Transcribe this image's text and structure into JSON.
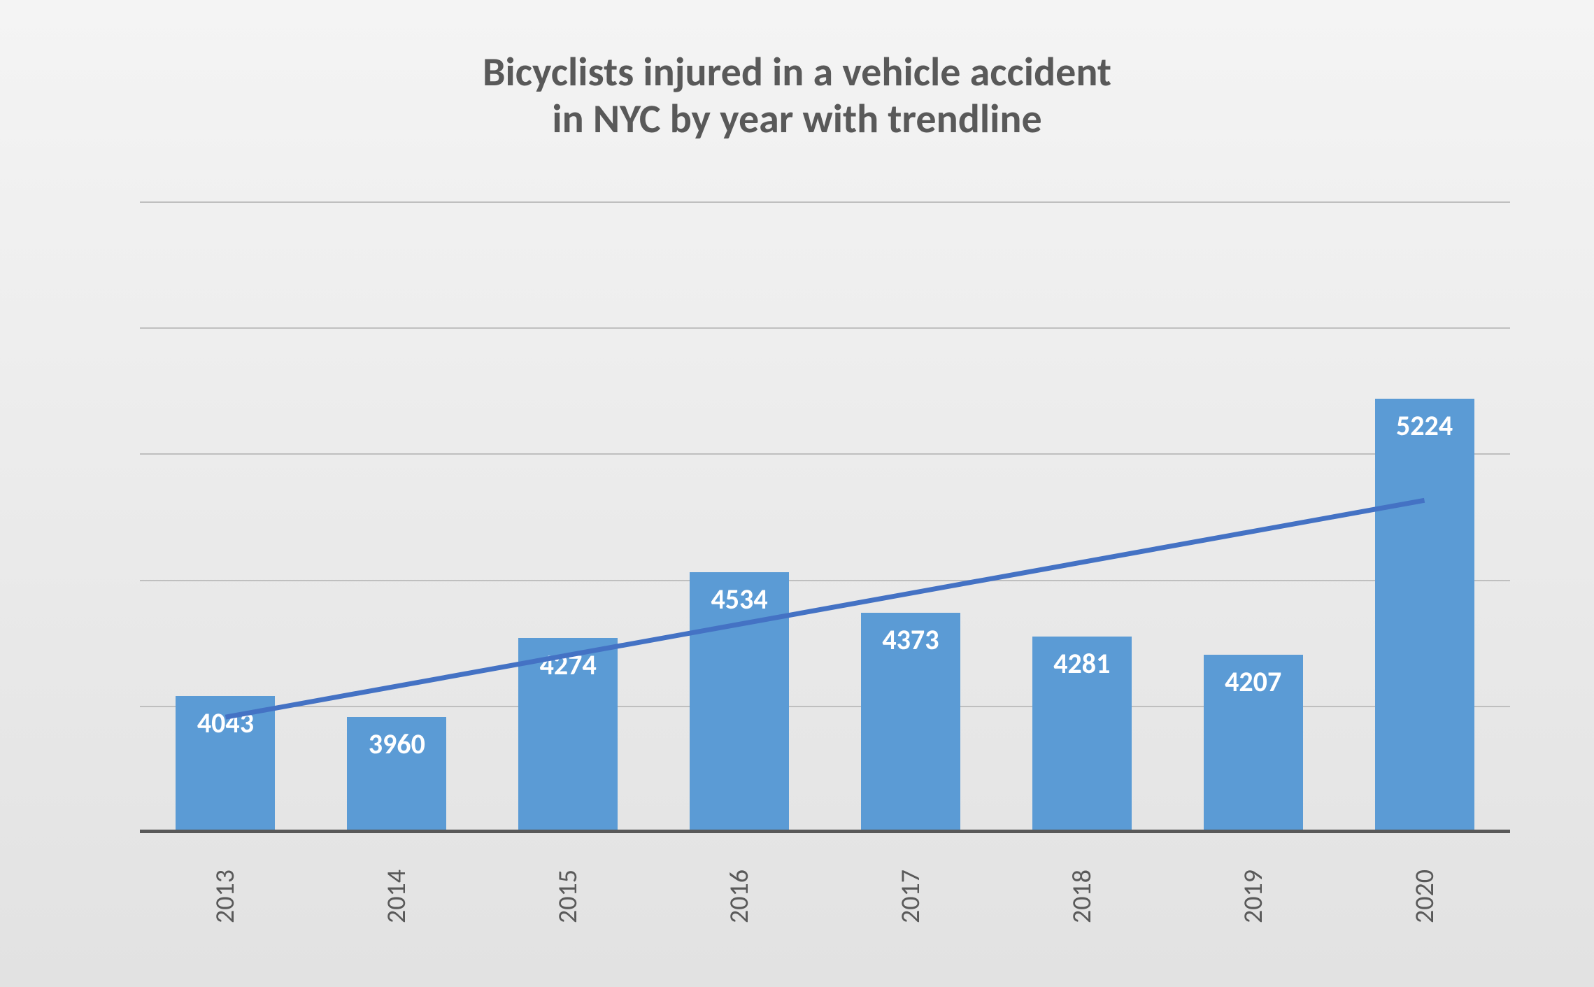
{
  "chart": {
    "type": "bar",
    "title_line1": "Bicyclists injured in a vehicle accident",
    "title_line2": "in NYC by year with trendline",
    "title_fontsize": 58,
    "title_color": "#595959",
    "categories": [
      "2013",
      "2014",
      "2015",
      "2016",
      "2017",
      "2018",
      "2019",
      "2020"
    ],
    "values": [
      4043,
      3960,
      4274,
      4534,
      4373,
      4281,
      4207,
      5224
    ],
    "value_labels": [
      "4043",
      "3960",
      "4274",
      "4534",
      "4373",
      "4281",
      "4207",
      "5224"
    ],
    "bar_color": "#5b9bd5",
    "bar_label_color": "#ffffff",
    "bar_label_fontsize": 40,
    "bar_width_ratio": 0.58,
    "ylim": [
      3500,
      6000
    ],
    "gridline_values": [
      3500,
      4000,
      4500,
      5000,
      5500,
      6000
    ],
    "gridline_color": "#bfbfbf",
    "axis_line_color": "#595959",
    "x_label_fontsize": 38,
    "x_label_color": "#595959",
    "x_label_rotation": -90,
    "trendline": {
      "color": "#4472c4",
      "width": 7,
      "start_value": 3960,
      "end_value": 4820
    },
    "background_gradient_top": "#f4f4f4",
    "background_gradient_bottom": "#e2e2e2"
  }
}
